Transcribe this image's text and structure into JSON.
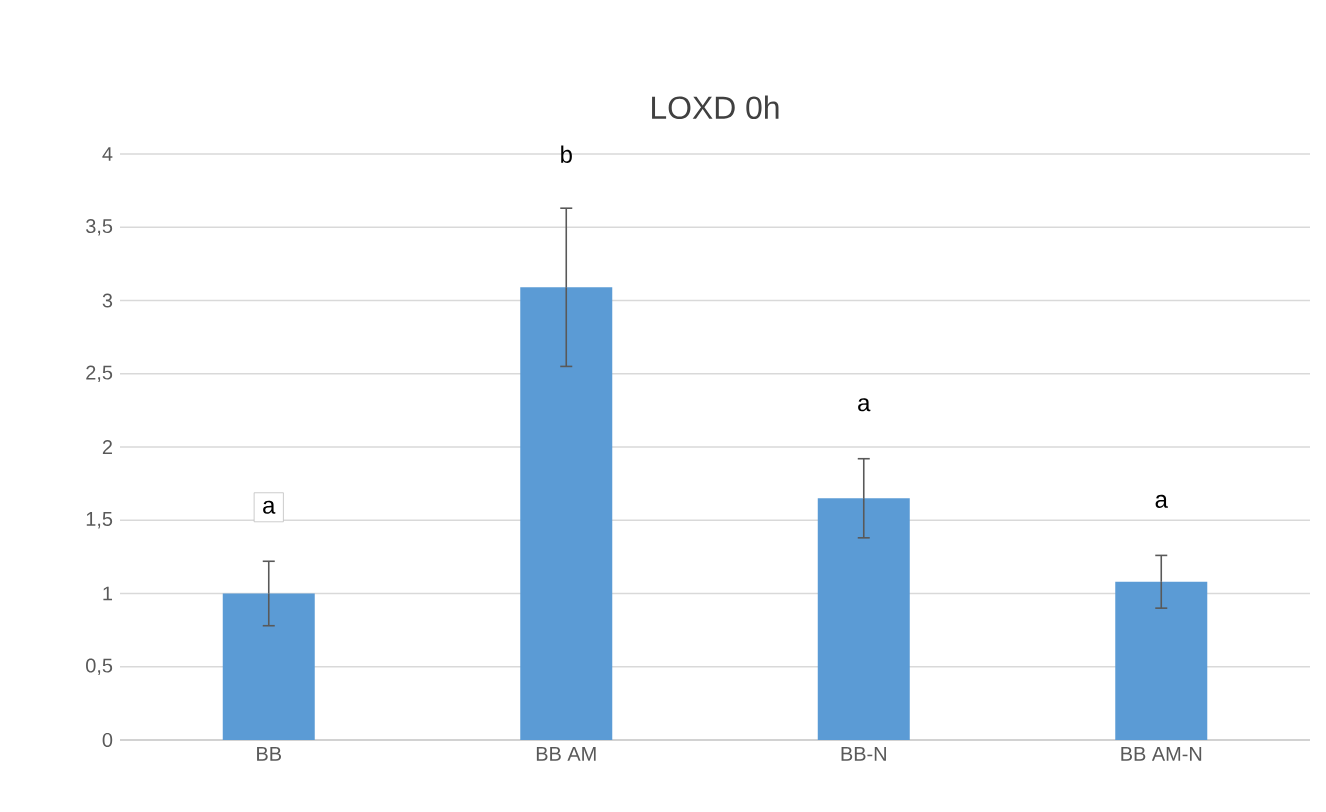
{
  "chart_data": {
    "type": "bar",
    "title": "LOXD 0h",
    "categories": [
      "BB",
      "BB AM",
      "BB-N",
      "BB AM-N"
    ],
    "values": [
      1.0,
      3.09,
      1.65,
      1.08
    ],
    "errors": [
      0.22,
      0.54,
      0.27,
      0.18
    ],
    "color": "#5b9bd5",
    "ylim": [
      0,
      4
    ],
    "yticks": [
      0,
      {
        "value": 0.5,
        "label": "0,5"
      },
      1,
      {
        "value": 1.5,
        "label": "1,5"
      },
      2,
      {
        "value": 2.5,
        "label": "2,5"
      },
      3,
      {
        "value": 3.5,
        "label": "3,5"
      },
      4
    ],
    "grid": "y",
    "annotations": [
      "a",
      "b",
      "a",
      "a"
    ]
  }
}
